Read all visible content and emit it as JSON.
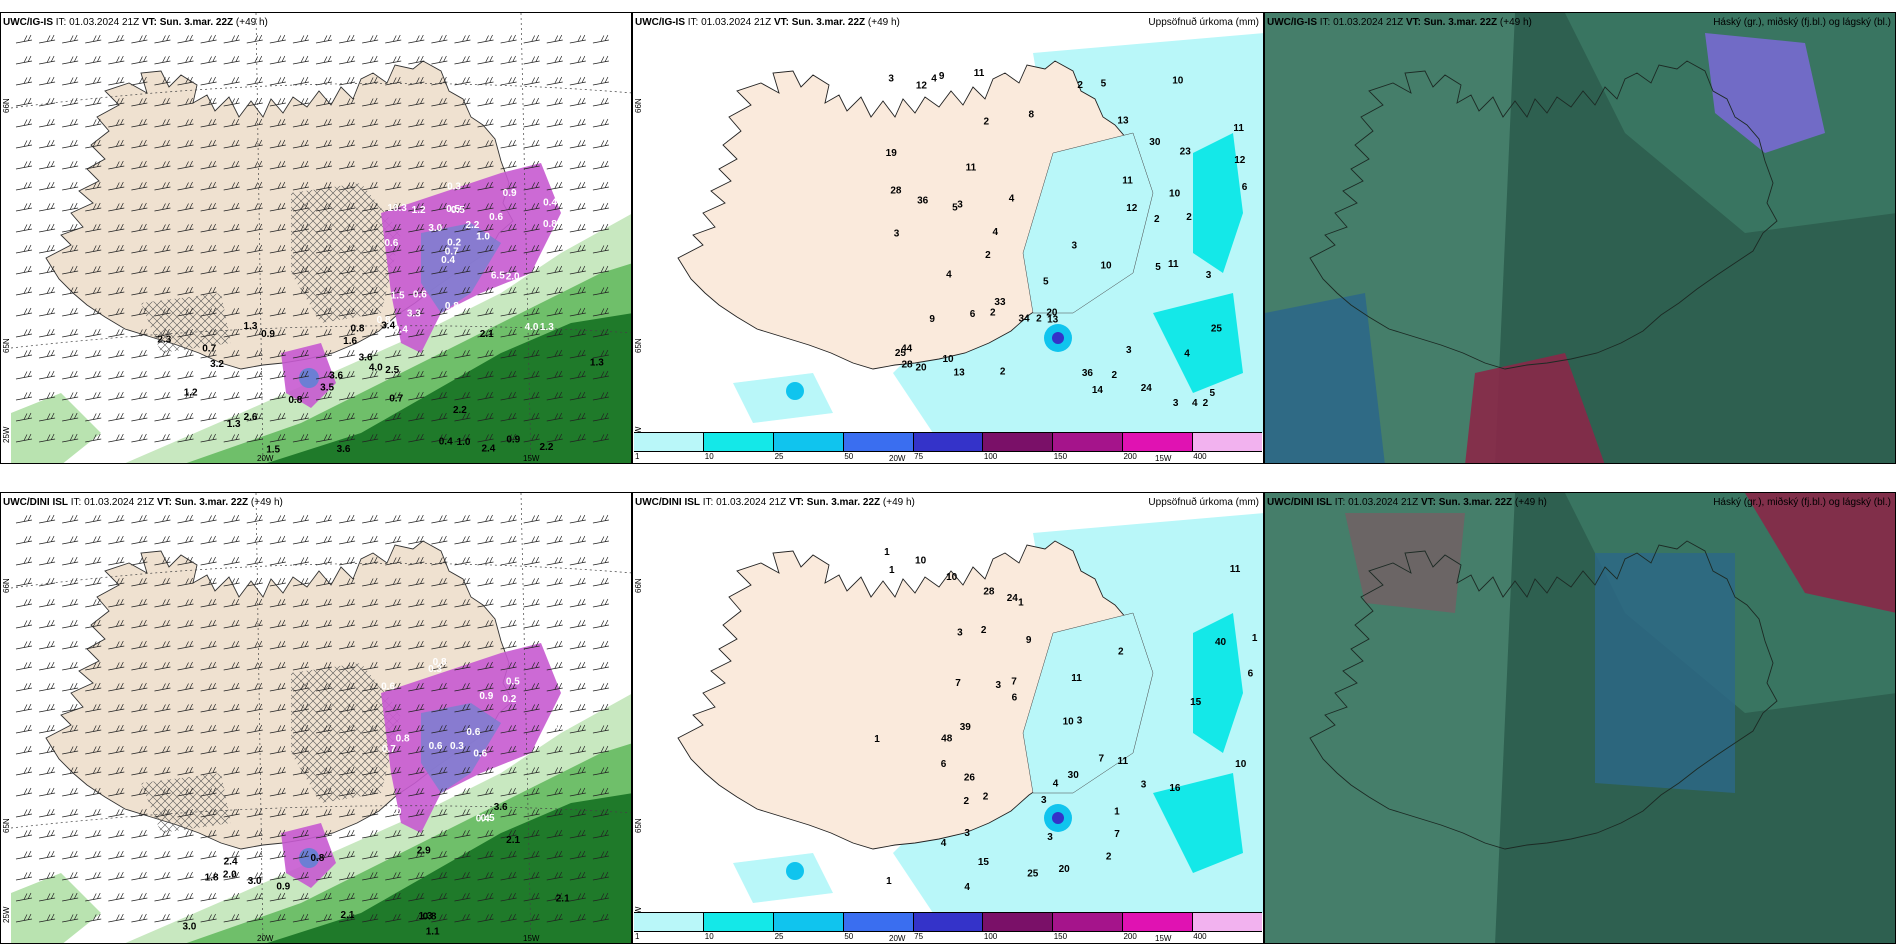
{
  "panels": [
    {
      "model": "UWC/IG-IS",
      "it_label": "IT:",
      "it_value": "01.03.2024 21Z",
      "vt_label": "VT:",
      "vt_value": "Sun. 3.mar. 22Z",
      "lead": "(+49 h)",
      "right_title": ""
    },
    {
      "model": "UWC/IG-IS",
      "it_label": "IT:",
      "it_value": "01.03.2024 21Z",
      "vt_label": "VT:",
      "vt_value": "Sun. 3.mar. 22Z",
      "lead": "(+49 h)",
      "right_title": "Uppsöfnuð úrkoma (mm)"
    },
    {
      "model": "UWC/IG-IS",
      "it_label": "IT:",
      "it_value": "01.03.2024 21Z",
      "vt_label": "VT:",
      "vt_value": "Sun. 3.mar. 22Z",
      "lead": "(+49 h)",
      "right_title": "Háský (gr.), miðský (fj.bl.) og lágský (bl.)"
    },
    {
      "model": "UWC/DINI ISL",
      "it_label": "IT:",
      "it_value": "01.03.2024 21Z",
      "vt_label": "VT:",
      "vt_value": "Sun. 3.mar. 22Z",
      "lead": "(+49 h)",
      "right_title": ""
    },
    {
      "model": "UWC/DINI ISL",
      "it_label": "IT:",
      "it_value": "01.03.2024 21Z",
      "vt_label": "VT:",
      "vt_value": "Sun. 3.mar. 22Z",
      "lead": "(+49 h)",
      "right_title": "Uppsöfnuð úrkoma (mm)"
    },
    {
      "model": "UWC/DINI ISL",
      "it_label": "IT:",
      "it_value": "01.03.2024 21Z",
      "vt_label": "VT:",
      "vt_value": "Sun. 3.mar. 22Z",
      "lead": "(+49 h)",
      "right_title": "Háský (gr.), miðský (fj.bl.) og lágský (bl.)"
    }
  ],
  "colorbar": {
    "ticks": [
      "1",
      "10",
      "25",
      "50",
      "75",
      "100",
      "150",
      "200",
      "400"
    ],
    "colors": [
      "#b9f7f9",
      "#14e8e8",
      "#10c4ee",
      "#3a6ef0",
      "#3433c9",
      "#7a1068",
      "#a5148b",
      "#e012b2",
      "#f2b2ef"
    ]
  },
  "axis_labels": {
    "lat66": "66N",
    "lat65": "65N",
    "lon25": "25W",
    "lon20": "20W",
    "lon15": "15W"
  },
  "map_labels": {
    "p1_snow_w": [
      "1.3",
      "0.6",
      "0.4",
      "0.4",
      "0.6",
      "0.4",
      "0.5",
      "2.2",
      "1.5",
      "3.0",
      "0.8",
      "3.3",
      "0.5",
      "1.0",
      "2.0",
      "10.3",
      "0.3",
      "12.5",
      "6.5",
      "0.8",
      "0.7",
      "0.8",
      "0.2",
      "1.2",
      "0.9",
      "0.6",
      "4.0"
    ],
    "p1_snow_k": [
      "1.3",
      "0.4",
      "0.7",
      "1.2",
      "0.9",
      "1.3",
      "3.6",
      "3.6",
      "2.6",
      "2.5",
      "1.6",
      "2.2",
      "2.1",
      "2.2",
      "3.4",
      "3.5",
      "3.6",
      "4.0",
      "0.9",
      "3.2",
      "0.7",
      "0.8",
      "2.3",
      "2.4",
      "1.5",
      "0.8",
      "1.0",
      "1.3"
    ],
    "p2_precip": [
      "5",
      "5",
      "4",
      "11",
      "2",
      "2",
      "2",
      "2",
      "2",
      "2",
      "2",
      "2",
      "3",
      "3",
      "4",
      "3",
      "3",
      "6",
      "11",
      "4",
      "4",
      "3",
      "2",
      "6",
      "4",
      "12",
      "36",
      "44",
      "23",
      "25",
      "33",
      "34",
      "20",
      "25",
      "30",
      "28",
      "36",
      "9",
      "4",
      "2",
      "3",
      "5",
      "3",
      "24",
      "13",
      "28",
      "20",
      "11",
      "11",
      "13",
      "14",
      "10",
      "10",
      "10",
      "12",
      "11",
      "13",
      "12",
      "9",
      "10",
      "5",
      "8",
      "19",
      "5"
    ],
    "p4_snow_w": [
      "0.8",
      "0.5",
      "0.4",
      "0.3",
      "0.6",
      "0.8",
      "0.6",
      "0.2",
      "0.7",
      "0.9",
      "0.6",
      "1.0",
      "0.3",
      "0.6",
      "0.4",
      "0.5"
    ],
    "p4_snow_k": [
      "0.8",
      "0.9",
      "1.3",
      "1.8",
      "2.4",
      "3.0",
      "3.0",
      "2.9",
      "2.0",
      "2.1",
      "2.1",
      "3.6",
      "1.1",
      "2.1",
      "0.8"
    ],
    "p5_precip": [
      "1",
      "1",
      "1",
      "11",
      "1",
      "1",
      "1",
      "2",
      "1",
      "3",
      "2",
      "3",
      "4",
      "6",
      "4",
      "3",
      "3",
      "4",
      "2",
      "7",
      "6",
      "3",
      "15",
      "39",
      "48",
      "30",
      "26",
      "16",
      "25",
      "24",
      "7",
      "28",
      "40",
      "10",
      "10",
      "7",
      "10",
      "6",
      "7",
      "2",
      "3",
      "20",
      "11",
      "9",
      "10",
      "11",
      "3",
      "15",
      "2"
    ]
  }
}
